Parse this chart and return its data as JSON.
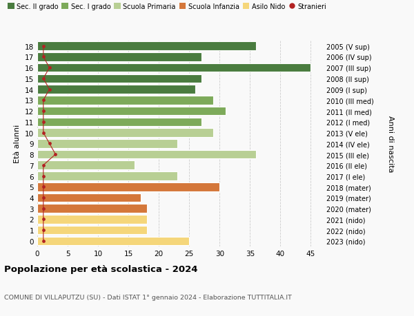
{
  "ages": [
    18,
    17,
    16,
    15,
    14,
    13,
    12,
    11,
    10,
    9,
    8,
    7,
    6,
    5,
    4,
    3,
    2,
    1,
    0
  ],
  "values": [
    36,
    27,
    45,
    27,
    26,
    29,
    31,
    27,
    29,
    23,
    36,
    16,
    23,
    30,
    17,
    18,
    18,
    18,
    25
  ],
  "stranieri": [
    1,
    1,
    2,
    1,
    2,
    1,
    1,
    1,
    1,
    2,
    3,
    1,
    1,
    1,
    1,
    1,
    1,
    1,
    1
  ],
  "right_labels": [
    "2005 (V sup)",
    "2006 (IV sup)",
    "2007 (III sup)",
    "2008 (II sup)",
    "2009 (I sup)",
    "2010 (III med)",
    "2011 (II med)",
    "2012 (I med)",
    "2013 (V ele)",
    "2014 (IV ele)",
    "2015 (III ele)",
    "2016 (II ele)",
    "2017 (I ele)",
    "2018 (mater)",
    "2019 (mater)",
    "2020 (mater)",
    "2021 (nido)",
    "2022 (nido)",
    "2023 (nido)"
  ],
  "colors": {
    "sec_II": "#4a7c3f",
    "sec_I": "#7daa5a",
    "primaria": "#b8cf94",
    "infanzia": "#d4773a",
    "nido": "#f5d67a",
    "stranieri": "#b22222"
  },
  "bar_colors": [
    "#4a7c3f",
    "#4a7c3f",
    "#4a7c3f",
    "#4a7c3f",
    "#4a7c3f",
    "#7daa5a",
    "#7daa5a",
    "#7daa5a",
    "#b8cf94",
    "#b8cf94",
    "#b8cf94",
    "#b8cf94",
    "#b8cf94",
    "#d4773a",
    "#d4773a",
    "#d4773a",
    "#f5d67a",
    "#f5d67a",
    "#f5d67a"
  ],
  "title": "Popolazione per età scolastica - 2024",
  "subtitle": "COMUNE DI VILLAPUTZU (SU) - Dati ISTAT 1° gennaio 2024 - Elaborazione TUTTITALIA.IT",
  "ylabel": "Età alunni",
  "right_ylabel": "Anni di nascita",
  "xlim": [
    0,
    47
  ],
  "xticks": [
    0,
    5,
    10,
    15,
    20,
    25,
    30,
    35,
    40,
    45
  ],
  "background_color": "#f9f9f9",
  "grid_color": "#cccccc",
  "legend_labels": [
    "Sec. II grado",
    "Sec. I grado",
    "Scuola Primaria",
    "Scuola Infanzia",
    "Asilo Nido",
    "Stranieri"
  ]
}
